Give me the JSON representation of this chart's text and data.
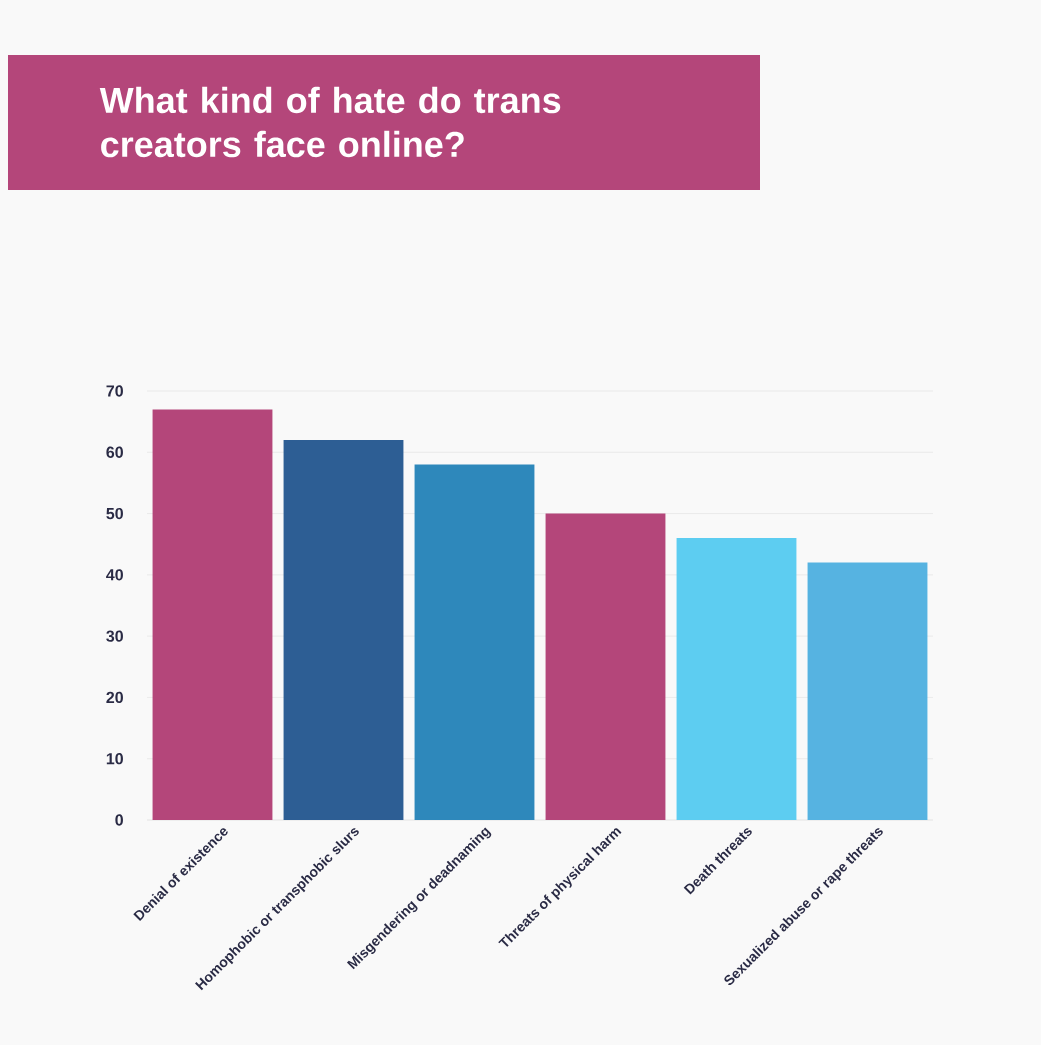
{
  "chart_data": {
    "type": "bar",
    "title": "What kind of hate do trans creators face online?",
    "categories": [
      "Denial of existence",
      "Homophobic or transphobic slurs",
      "Misgendering or deadnaming",
      "Threats of physical harm",
      "Death threats",
      "Sexualized abuse or rape threats"
    ],
    "values": [
      67,
      62,
      58,
      50,
      46,
      42
    ],
    "colors": [
      "#b4467a",
      "#2d5e94",
      "#2e88bb",
      "#b4467a",
      "#5dcdf1",
      "#56b3e1"
    ],
    "ylim": [
      0,
      70
    ],
    "yticks": [
      0,
      10,
      20,
      30,
      40,
      50,
      60,
      70
    ],
    "grid": "y"
  }
}
